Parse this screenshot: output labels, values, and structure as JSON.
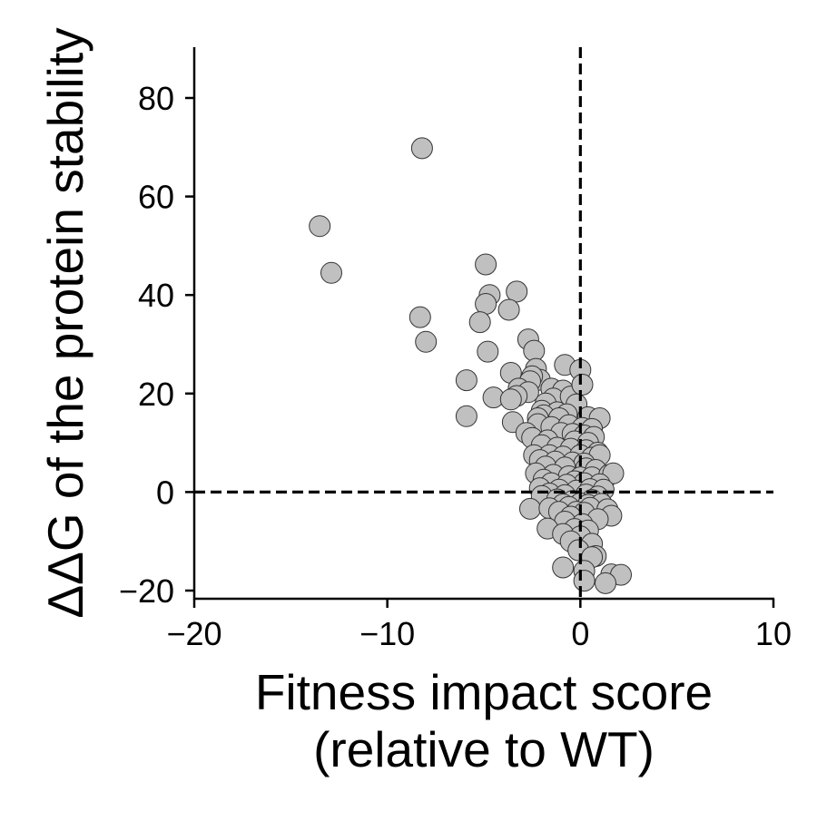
{
  "chart_data": {
    "type": "scatter",
    "title": "",
    "xlabel_lines": [
      "Fitness impact score",
      "(relative to WT)"
    ],
    "ylabel": "ΔΔG of the protein stability",
    "xlim": [
      -20,
      10
    ],
    "ylim": [
      -22,
      90
    ],
    "xticks": [
      -20,
      -10,
      0,
      10
    ],
    "yticks": [
      -20,
      0,
      20,
      40,
      60,
      80
    ],
    "xtick_labels": [
      "−20",
      "−10",
      "0",
      "10"
    ],
    "ytick_labels": [
      "−20",
      "0",
      "20",
      "40",
      "60",
      "80"
    ],
    "reference_lines": {
      "x": 0,
      "y": 0,
      "style": "dashed"
    },
    "grid": false,
    "legend": "none",
    "marker_color": "#c0c0c0",
    "marker_edge_color": "#333333",
    "points": [
      [
        -8.2,
        69.8
      ],
      [
        -13.5,
        54.0
      ],
      [
        -12.9,
        44.5
      ],
      [
        -4.9,
        46.2
      ],
      [
        -4.7,
        40.0
      ],
      [
        -3.3,
        40.7
      ],
      [
        -4.9,
        38.2
      ],
      [
        -3.7,
        37.0
      ],
      [
        -8.3,
        35.5
      ],
      [
        -5.2,
        34.5
      ],
      [
        -8.0,
        30.5
      ],
      [
        -2.7,
        31.0
      ],
      [
        -4.8,
        28.5
      ],
      [
        -2.4,
        28.7
      ],
      [
        -2.3,
        25.0
      ],
      [
        -3.6,
        24.2
      ],
      [
        -5.9,
        22.7
      ],
      [
        -2.1,
        22.8
      ],
      [
        -0.8,
        25.8
      ],
      [
        0.0,
        24.8
      ],
      [
        -2.5,
        23.5
      ],
      [
        -2.6,
        22.5
      ],
      [
        -3.2,
        21.0
      ],
      [
        -2.7,
        20.3
      ],
      [
        -1.5,
        21.0
      ],
      [
        -0.9,
        20.6
      ],
      [
        -3.3,
        19.5
      ],
      [
        -4.5,
        19.2
      ],
      [
        -3.6,
        18.8
      ],
      [
        -1.4,
        19.0
      ],
      [
        -1.8,
        18.0
      ],
      [
        -0.5,
        19.4
      ],
      [
        0.1,
        21.8
      ],
      [
        -0.2,
        17.8
      ],
      [
        -2.0,
        16.5
      ],
      [
        -1.2,
        16.2
      ],
      [
        -0.7,
        15.8
      ],
      [
        -1.9,
        15.6
      ],
      [
        -5.9,
        15.4
      ],
      [
        -2.2,
        15.0
      ],
      [
        -1.1,
        15.0
      ],
      [
        0.4,
        15.2
      ],
      [
        1.0,
        15.0
      ],
      [
        -3.5,
        14.2
      ],
      [
        -2.2,
        13.8
      ],
      [
        -1.5,
        13.2
      ],
      [
        -0.6,
        13.6
      ],
      [
        0.1,
        13.0
      ],
      [
        0.6,
        12.8
      ],
      [
        -2.8,
        12.0
      ],
      [
        -1.0,
        12.0
      ],
      [
        -0.4,
        11.8
      ],
      [
        0.2,
        11.5
      ],
      [
        0.7,
        11.2
      ],
      [
        -2.5,
        11.0
      ],
      [
        -1.7,
        10.5
      ],
      [
        -0.3,
        10.3
      ],
      [
        0.4,
        10.0
      ],
      [
        -2.0,
        9.5
      ],
      [
        -1.2,
        9.0
      ],
      [
        -0.5,
        8.8
      ],
      [
        0.3,
        8.5
      ],
      [
        0.9,
        8.0
      ],
      [
        -2.4,
        7.5
      ],
      [
        -1.6,
        7.5
      ],
      [
        -0.9,
        7.2
      ],
      [
        0.0,
        7.5
      ],
      [
        0.6,
        7.0
      ],
      [
        1.0,
        7.5
      ],
      [
        -2.1,
        6.5
      ],
      [
        -1.3,
        6.2
      ],
      [
        -0.4,
        6.0
      ],
      [
        0.2,
        5.8
      ],
      [
        -1.8,
        5.2
      ],
      [
        -0.8,
        5.0
      ],
      [
        0.3,
        4.8
      ],
      [
        0.8,
        4.5
      ],
      [
        -2.3,
        3.8
      ],
      [
        -1.4,
        3.5
      ],
      [
        -0.6,
        3.2
      ],
      [
        0.0,
        3.0
      ],
      [
        0.6,
        3.0
      ],
      [
        1.5,
        3.5
      ],
      [
        1.7,
        3.8
      ],
      [
        -1.9,
        2.5
      ],
      [
        -0.3,
        2.2
      ],
      [
        -1.5,
        1.8
      ],
      [
        0.2,
        1.8
      ],
      [
        -0.7,
        1.5
      ],
      [
        1.0,
        1.6
      ],
      [
        -2.1,
        0.8
      ],
      [
        -1.1,
        0.5
      ],
      [
        -0.2,
        0.3
      ],
      [
        0.5,
        0.6
      ],
      [
        1.2,
        0.5
      ],
      [
        -1.6,
        -0.3
      ],
      [
        -0.8,
        -0.6
      ],
      [
        0.3,
        -0.5
      ],
      [
        -2.0,
        -0.8
      ],
      [
        0.9,
        -0.9
      ],
      [
        -1.2,
        -1.5
      ],
      [
        -0.4,
        -1.8
      ],
      [
        0.6,
        -1.6
      ],
      [
        -0.9,
        -2.5
      ],
      [
        0.0,
        -2.3
      ],
      [
        0.4,
        -2.6
      ],
      [
        1.1,
        -2.4
      ],
      [
        -2.6,
        -3.4
      ],
      [
        -1.6,
        -3.3
      ],
      [
        -0.6,
        -3.0
      ],
      [
        0.5,
        -3.2
      ],
      [
        1.4,
        -3.5
      ],
      [
        -1.1,
        -4.0
      ],
      [
        -0.2,
        -4.0
      ],
      [
        0.2,
        -4.2
      ],
      [
        1.6,
        -4.8
      ],
      [
        -0.5,
        -5.0
      ],
      [
        0.9,
        -5.5
      ],
      [
        -0.8,
        -6.0
      ],
      [
        0.1,
        -6.5
      ],
      [
        -1.7,
        -7.4
      ],
      [
        -0.3,
        -7.5
      ],
      [
        0.4,
        -7.8
      ],
      [
        -0.9,
        -8.5
      ],
      [
        0.0,
        -9.0
      ],
      [
        -0.5,
        -10.0
      ],
      [
        0.6,
        -10.5
      ],
      [
        -0.1,
        -11.8
      ],
      [
        0.8,
        -13.0
      ],
      [
        0.6,
        -13.2
      ],
      [
        -0.9,
        -15.3
      ],
      [
        0.2,
        -16.0
      ],
      [
        1.6,
        -16.7
      ],
      [
        2.1,
        -16.8
      ],
      [
        1.3,
        -18.5
      ],
      [
        0.2,
        -18.0
      ]
    ]
  }
}
